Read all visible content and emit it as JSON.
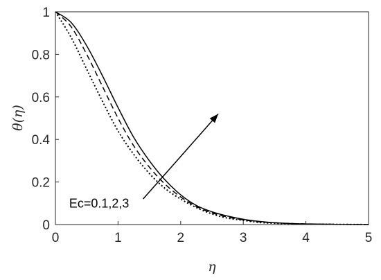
{
  "chart_data": {
    "type": "line",
    "xlabel": "η",
    "ylabel": "θ(η)",
    "xlim": [
      0,
      5
    ],
    "ylim": [
      0,
      1
    ],
    "xticks": [
      "0",
      "1",
      "2",
      "3",
      "4",
      "5"
    ],
    "yticks": [
      "0",
      "0.2",
      "0.4",
      "0.6",
      "0.8",
      "1"
    ],
    "grid": false,
    "legend": "none",
    "x": [
      0,
      0.25,
      0.5,
      0.75,
      1,
      1.25,
      1.5,
      1.75,
      2,
      2.25,
      2.5,
      2.75,
      3,
      3.25,
      3.5,
      3.75,
      4,
      4.5,
      5
    ],
    "series": [
      {
        "style": "dotted",
        "values": [
          1,
          0.88,
          0.73,
          0.58,
          0.44,
          0.33,
          0.24,
          0.17,
          0.12,
          0.08,
          0.05,
          0.03,
          0.02,
          0.01,
          0.006,
          0.004,
          0.002,
          0.001,
          0.0
        ]
      },
      {
        "style": "dashed",
        "values": [
          1,
          0.93,
          0.8,
          0.65,
          0.5,
          0.37,
          0.27,
          0.19,
          0.13,
          0.085,
          0.055,
          0.035,
          0.022,
          0.013,
          0.008,
          0.005,
          0.003,
          0.001,
          0.0
        ]
      },
      {
        "style": "solid",
        "values": [
          1,
          0.95,
          0.84,
          0.7,
          0.55,
          0.41,
          0.3,
          0.21,
          0.14,
          0.09,
          0.06,
          0.04,
          0.025,
          0.015,
          0.009,
          0.005,
          0.003,
          0.001,
          0.0
        ]
      }
    ],
    "annotations": [
      {
        "text": "Ec=0.1,2,3",
        "x": 0.22,
        "y": 0.1
      },
      {
        "type": "arrow",
        "x1": 1.4,
        "y1": 0.12,
        "x2": 2.6,
        "y2": 0.52
      }
    ]
  }
}
